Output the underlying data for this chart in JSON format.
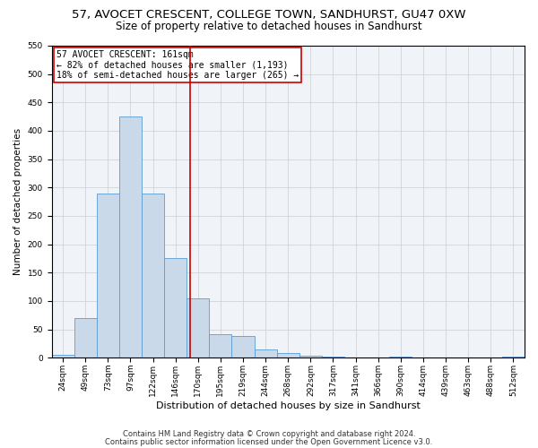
{
  "title1": "57, AVOCET CRESCENT, COLLEGE TOWN, SANDHURST, GU47 0XW",
  "title2": "Size of property relative to detached houses in Sandhurst",
  "xlabel": "Distribution of detached houses by size in Sandhurst",
  "ylabel": "Number of detached properties",
  "categories": [
    "24sqm",
    "49sqm",
    "73sqm",
    "97sqm",
    "122sqm",
    "146sqm",
    "170sqm",
    "195sqm",
    "219sqm",
    "244sqm",
    "268sqm",
    "292sqm",
    "317sqm",
    "341sqm",
    "366sqm",
    "390sqm",
    "414sqm",
    "439sqm",
    "463sqm",
    "488sqm",
    "512sqm"
  ],
  "values": [
    5,
    70,
    290,
    425,
    290,
    175,
    105,
    42,
    38,
    15,
    8,
    3,
    2,
    1,
    0,
    2,
    0,
    0,
    0,
    0,
    2
  ],
  "bar_color": "#c9d9ea",
  "bar_edgecolor": "#5b9bd5",
  "vline_x": 5.64,
  "vline_color": "#cc0000",
  "annotation_text": "57 AVOCET CRESCENT: 161sqm\n← 82% of detached houses are smaller (1,193)\n18% of semi-detached houses are larger (265) →",
  "annotation_box_edgecolor": "#cc0000",
  "annotation_box_facecolor": "#ffffff",
  "ylim": [
    0,
    550
  ],
  "yticks": [
    0,
    50,
    100,
    150,
    200,
    250,
    300,
    350,
    400,
    450,
    500,
    550
  ],
  "footnote1": "Contains HM Land Registry data © Crown copyright and database right 2024.",
  "footnote2": "Contains public sector information licensed under the Open Government Licence v3.0.",
  "title1_fontsize": 9.5,
  "title2_fontsize": 8.5,
  "xlabel_fontsize": 8,
  "ylabel_fontsize": 7.5,
  "tick_fontsize": 6.5,
  "annotation_fontsize": 7,
  "footnote_fontsize": 6
}
